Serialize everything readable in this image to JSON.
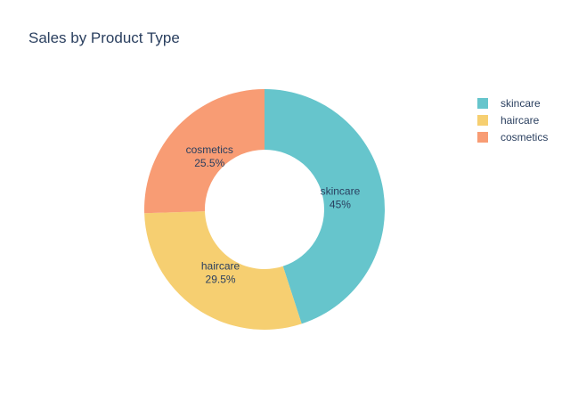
{
  "chart_data": {
    "type": "pie",
    "donut": true,
    "title": "Sales by Product Type",
    "categories": [
      "skincare",
      "haircare",
      "cosmetics"
    ],
    "values": [
      45,
      29.5,
      25.5
    ],
    "percent_labels": [
      "45%",
      "29.5%",
      "25.5%"
    ],
    "colors": [
      "#66C5CC",
      "#F6CF71",
      "#F89C74"
    ],
    "legend": {
      "position": "top-right",
      "entries": [
        "skincare",
        "haircare",
        "cosmetics"
      ]
    }
  }
}
